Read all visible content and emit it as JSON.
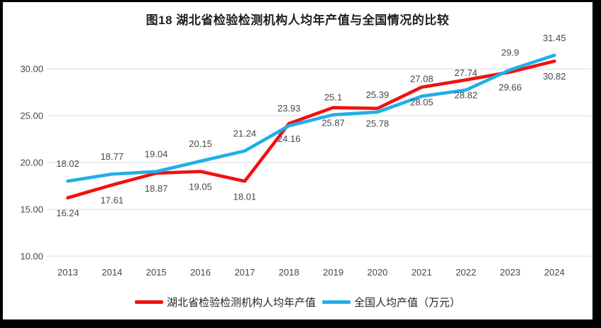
{
  "window": {
    "background": "#ffffff",
    "border_color": "#000000"
  },
  "chart_data": {
    "type": "line",
    "title": "图18  湖北省检验检测机构人均年产值与全国情况的比较",
    "categories": [
      "2013",
      "2014",
      "2015",
      "2016",
      "2017",
      "2018",
      "2019",
      "2020",
      "2021",
      "2022",
      "2023",
      "2024"
    ],
    "series": [
      {
        "name": "湖北省检验检测机构人均年产值",
        "color": "#f2100f",
        "label_position": "below",
        "values": [
          16.24,
          17.61,
          18.87,
          19.05,
          18.01,
          24.16,
          25.87,
          25.78,
          28.05,
          28.82,
          29.66,
          30.82
        ]
      },
      {
        "name": "全国人均产值（万元）",
        "color": "#1fafe8",
        "label_position": "above",
        "values": [
          18.02,
          18.77,
          19.04,
          20.15,
          21.24,
          23.93,
          25.1,
          25.39,
          27.08,
          27.74,
          29.9,
          31.45
        ]
      }
    ],
    "y_ticks": [
      {
        "label": "30.00",
        "value": 30
      },
      {
        "label": "25.00",
        "value": 25
      },
      {
        "label": "20.00",
        "value": 20
      },
      {
        "label": "15.00",
        "value": 15
      },
      {
        "label": "10.00",
        "value": 10
      }
    ],
    "ylim": [
      10,
      30
    ],
    "grid": true,
    "grid_color": "#e2e2e2",
    "axis_label_color": "#474747",
    "data_label_color": "#3d3d3d",
    "legend_position": "bottom",
    "data_labels": true
  }
}
